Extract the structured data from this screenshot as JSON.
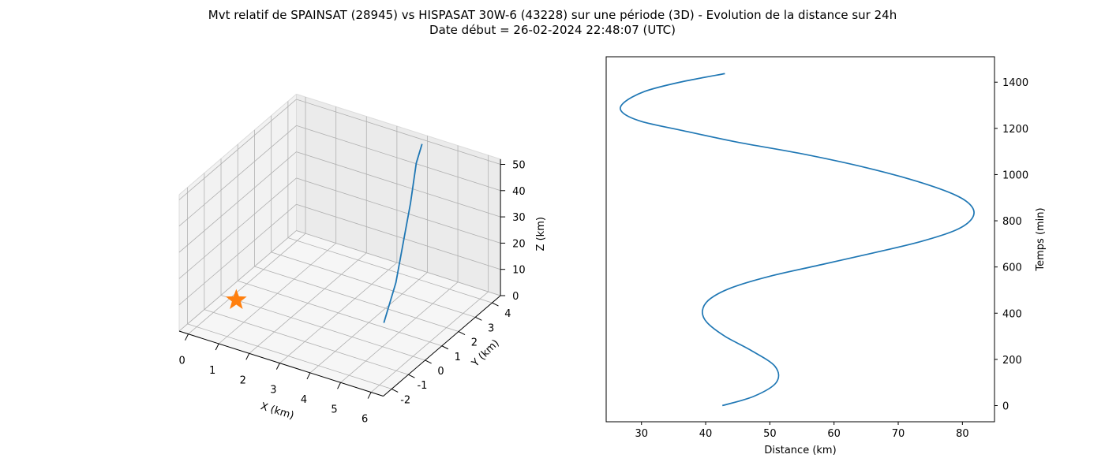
{
  "title_line1": "Mvt relatif de SPAINSAT (28945) vs HISPASAT 30W-6 (43228) sur une période (3D) - Evolution de la distance sur 24h",
  "title_line2": "Date début = 26-02-2024 22:48:07 (UTC)",
  "colors": {
    "series": "#1f77b4",
    "marker": "#ff7f0e",
    "axis": "#000000",
    "grid": "#b0b0b0",
    "pane": "#f2f2f2"
  },
  "chart_data": [
    {
      "type": "line3d",
      "xlabel": "X (km)",
      "ylabel": "Y (km)",
      "zlabel": "Z (km)",
      "xticks": [
        0,
        1,
        2,
        3,
        4,
        5,
        6
      ],
      "yticks": [
        -2,
        -1,
        0,
        1,
        2,
        3,
        4
      ],
      "zticks": [
        0,
        10,
        20,
        30,
        40,
        50
      ],
      "grid": true,
      "series": [
        {
          "x": [
            5.1,
            5.0,
            4.8,
            4.6,
            4.35,
            4.1
          ],
          "y": [
            -0.1,
            0.8,
            1.6,
            2.4,
            3.2,
            4.0
          ],
          "z": [
            10,
            20,
            30,
            40,
            50,
            52
          ]
        }
      ],
      "marker": {
        "shape": "star",
        "x": 0.2,
        "y": 0.0,
        "z": 0
      }
    },
    {
      "type": "line",
      "xlabel": "Distance (km)",
      "ylabel": "Temps (min)",
      "xlim": [
        24.5,
        85
      ],
      "ylim": [
        -70,
        1510
      ],
      "xticks": [
        30,
        40,
        50,
        60,
        70,
        80
      ],
      "yticks": [
        0,
        200,
        400,
        600,
        800,
        1000,
        1200,
        1400
      ],
      "grid": false,
      "series": [
        {
          "x": [
            42.6,
            47.5,
            51.0,
            50.8,
            47.0,
            43.0,
            40.2,
            39.5,
            40.6,
            44.0,
            50.0,
            58.0,
            66.0,
            73.5,
            79.0,
            81.5,
            81.5,
            79.0,
            73.0,
            65.0,
            55.0,
            45.0,
            36.5,
            30.0,
            27.0,
            27.2,
            30.5,
            36.0,
            43.0
          ],
          "y": [
            0,
            40,
            100,
            170,
            240,
            300,
            360,
            410,
            460,
            510,
            560,
            610,
            660,
            710,
            760,
            810,
            860,
            910,
            970,
            1030,
            1090,
            1140,
            1190,
            1230,
            1270,
            1310,
            1360,
            1400,
            1437
          ]
        }
      ]
    }
  ]
}
